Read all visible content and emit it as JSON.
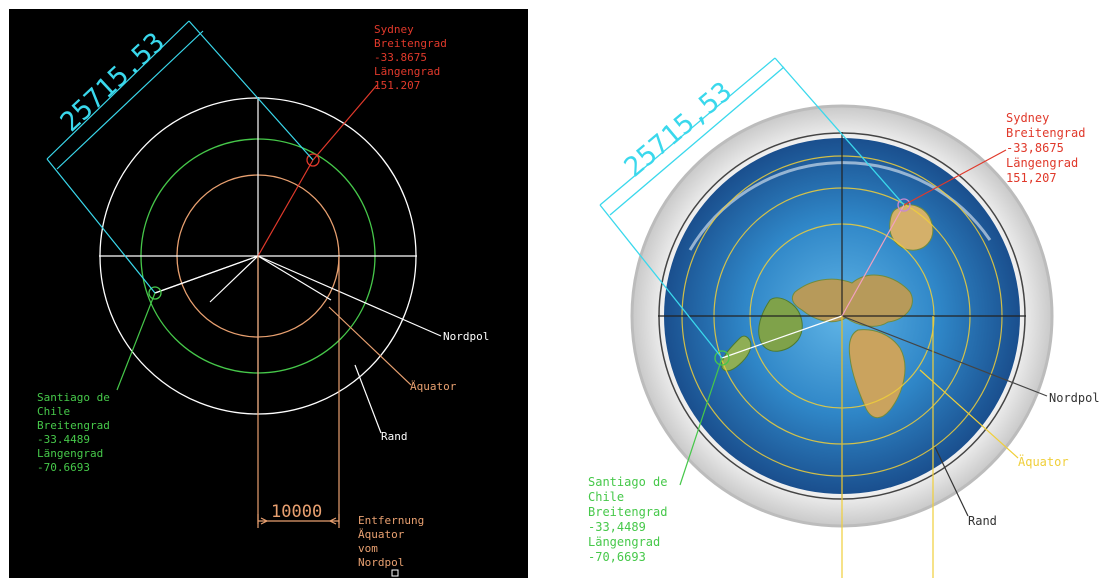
{
  "left": {
    "dimension_value": "25715.53",
    "sydney": {
      "name": "Sydney",
      "lat_label": "Breitengrad",
      "lat": "-33.8675",
      "lon_label": "Längengrad",
      "lon": "151.207"
    },
    "santiago": {
      "name1": "Santiago de",
      "name2": "Chile",
      "lat_label": "Breitengrad",
      "lat": "-33.4489",
      "lon_label": "Längengrad",
      "lon": "-70.6693"
    },
    "labels": {
      "nordpol": "Nordpol",
      "aquator": "Äquator",
      "rand": "Rand"
    },
    "scale": {
      "value": "10000",
      "caption1": "Entfernung",
      "caption2": "Äquator",
      "caption3": "vom",
      "caption4": "Nordpol"
    }
  },
  "right": {
    "dimension_value": "25715,53",
    "sydney": {
      "name": "Sydney",
      "lat_label": "Breitengrad",
      "lat": "-33,8675",
      "lon_label": "Längengrad",
      "lon": "151,207"
    },
    "santiago": {
      "name1": "Santiago de",
      "name2": "Chile",
      "lat_label": "Breitengrad",
      "lat": "-33,4489",
      "lon_label": "Längengrad",
      "lon": "-70,6693"
    },
    "labels": {
      "nordpol": "Nordpol",
      "aquator": "Äquator",
      "rand": "Rand"
    }
  },
  "colors": {
    "cyan": "#3ad8ec",
    "red": "#e0392b",
    "green": "#46c84a",
    "orange": "#e8a070",
    "white": "#ffffff",
    "yellow": "#f0cf3a",
    "dark": "#333333"
  }
}
